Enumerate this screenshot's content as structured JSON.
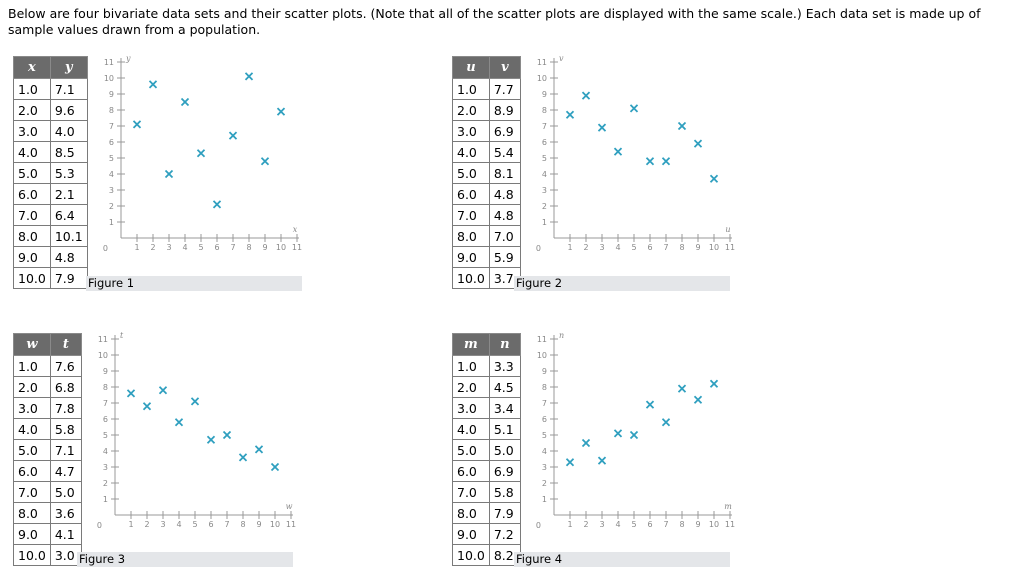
{
  "intro": {
    "line1": "Below are four bivariate data sets and their scatter plots. (Note that all of the scatter plots are displayed with the same scale.) Each data set is made up of",
    "line2": "sample values drawn from a population."
  },
  "colors": {
    "marker": "#2f9fbf",
    "axis": "#999999",
    "header_bg": "#6b6b6b",
    "caption_bg": "#e4e6e9"
  },
  "chart_data": [
    {
      "type": "scatter",
      "caption": "Figure 1",
      "xlabel": "x",
      "ylabel": "y",
      "columns": [
        "x",
        "y"
      ],
      "rows": [
        [
          "1.0",
          "7.1"
        ],
        [
          "2.0",
          "9.6"
        ],
        [
          "3.0",
          "4.0"
        ],
        [
          "4.0",
          "8.5"
        ],
        [
          "5.0",
          "5.3"
        ],
        [
          "6.0",
          "2.1"
        ],
        [
          "7.0",
          "6.4"
        ],
        [
          "8.0",
          "10.1"
        ],
        [
          "9.0",
          "4.8"
        ],
        [
          "10.0",
          "7.9"
        ]
      ],
      "x": [
        1,
        2,
        3,
        4,
        5,
        6,
        7,
        8,
        9,
        10
      ],
      "y": [
        7.1,
        9.6,
        4.0,
        8.5,
        5.3,
        2.1,
        6.4,
        10.1,
        4.8,
        7.9
      ],
      "xlim": [
        0,
        11
      ],
      "ylim": [
        0,
        11
      ],
      "x_ticks": [
        "1",
        "2",
        "3",
        "4",
        "5",
        "6",
        "7",
        "8",
        "9",
        "10",
        "11"
      ],
      "y_ticks": [
        "1",
        "2",
        "3",
        "4",
        "5",
        "6",
        "7",
        "8",
        "9",
        "10",
        "11"
      ],
      "origin_label": "0",
      "marker": "x"
    },
    {
      "type": "scatter",
      "caption": "Figure 2",
      "xlabel": "u",
      "ylabel": "v",
      "columns": [
        "u",
        "v"
      ],
      "rows": [
        [
          "1.0",
          "7.7"
        ],
        [
          "2.0",
          "8.9"
        ],
        [
          "3.0",
          "6.9"
        ],
        [
          "4.0",
          "5.4"
        ],
        [
          "5.0",
          "8.1"
        ],
        [
          "6.0",
          "4.8"
        ],
        [
          "7.0",
          "4.8"
        ],
        [
          "8.0",
          "7.0"
        ],
        [
          "9.0",
          "5.9"
        ],
        [
          "10.0",
          "3.7"
        ]
      ],
      "x": [
        1,
        2,
        3,
        4,
        5,
        6,
        7,
        8,
        9,
        10
      ],
      "y": [
        7.7,
        8.9,
        6.9,
        5.4,
        8.1,
        4.8,
        4.8,
        7.0,
        5.9,
        3.7
      ],
      "xlim": [
        0,
        11
      ],
      "ylim": [
        0,
        11
      ],
      "x_ticks": [
        "1",
        "2",
        "3",
        "4",
        "5",
        "6",
        "7",
        "8",
        "9",
        "10",
        "11"
      ],
      "y_ticks": [
        "1",
        "2",
        "3",
        "4",
        "5",
        "6",
        "7",
        "8",
        "9",
        "10",
        "11"
      ],
      "origin_label": "0",
      "marker": "x"
    },
    {
      "type": "scatter",
      "caption": "Figure 3",
      "xlabel": "w",
      "ylabel": "t",
      "columns": [
        "w",
        "t"
      ],
      "rows": [
        [
          "1.0",
          "7.6"
        ],
        [
          "2.0",
          "6.8"
        ],
        [
          "3.0",
          "7.8"
        ],
        [
          "4.0",
          "5.8"
        ],
        [
          "5.0",
          "7.1"
        ],
        [
          "6.0",
          "4.7"
        ],
        [
          "7.0",
          "5.0"
        ],
        [
          "8.0",
          "3.6"
        ],
        [
          "9.0",
          "4.1"
        ],
        [
          "10.0",
          "3.0"
        ]
      ],
      "x": [
        1,
        2,
        3,
        4,
        5,
        6,
        7,
        8,
        9,
        10
      ],
      "y": [
        7.6,
        6.8,
        7.8,
        5.8,
        7.1,
        4.7,
        5.0,
        3.6,
        4.1,
        3.0
      ],
      "xlim": [
        0,
        11
      ],
      "ylim": [
        0,
        11
      ],
      "x_ticks": [
        "1",
        "2",
        "3",
        "4",
        "5",
        "6",
        "7",
        "8",
        "9",
        "10",
        "11"
      ],
      "y_ticks": [
        "1",
        "2",
        "3",
        "4",
        "5",
        "6",
        "7",
        "8",
        "9",
        "10",
        "11"
      ],
      "origin_label": "0",
      "marker": "x"
    },
    {
      "type": "scatter",
      "caption": "Figure 4",
      "xlabel": "m",
      "ylabel": "n",
      "columns": [
        "m",
        "n"
      ],
      "rows": [
        [
          "1.0",
          "3.3"
        ],
        [
          "2.0",
          "4.5"
        ],
        [
          "3.0",
          "3.4"
        ],
        [
          "4.0",
          "5.1"
        ],
        [
          "5.0",
          "5.0"
        ],
        [
          "6.0",
          "6.9"
        ],
        [
          "7.0",
          "5.8"
        ],
        [
          "8.0",
          "7.9"
        ],
        [
          "9.0",
          "7.2"
        ],
        [
          "10.0",
          "8.2"
        ]
      ],
      "x": [
        1,
        2,
        3,
        4,
        5,
        6,
        7,
        8,
        9,
        10
      ],
      "y": [
        3.3,
        4.5,
        3.4,
        5.1,
        5.0,
        6.9,
        5.8,
        7.9,
        7.2,
        8.2
      ],
      "xlim": [
        0,
        11
      ],
      "ylim": [
        0,
        11
      ],
      "x_ticks": [
        "1",
        "2",
        "3",
        "4",
        "5",
        "6",
        "7",
        "8",
        "9",
        "10",
        "11"
      ],
      "y_ticks": [
        "1",
        "2",
        "3",
        "4",
        "5",
        "6",
        "7",
        "8",
        "9",
        "10",
        "11"
      ],
      "origin_label": "0",
      "marker": "x"
    }
  ]
}
